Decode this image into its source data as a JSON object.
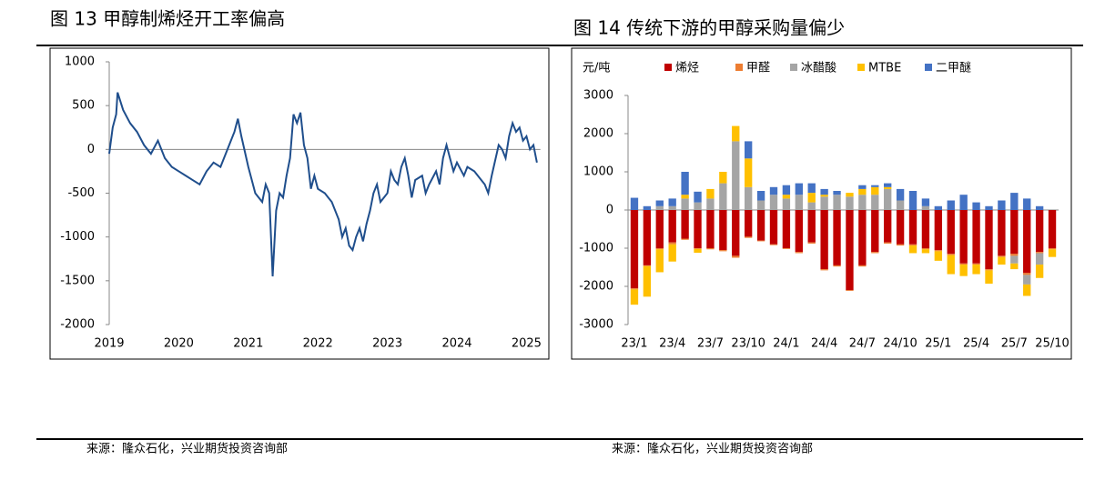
{
  "chart_data": [
    {
      "type": "line",
      "title": "图 13 甲醇制烯烃开工率偏高",
      "x": [
        2019.0,
        2019.05,
        2019.1,
        2019.12,
        2019.2,
        2019.3,
        2019.4,
        2019.5,
        2019.6,
        2019.7,
        2019.8,
        2019.9,
        2020.0,
        2020.1,
        2020.2,
        2020.3,
        2020.4,
        2020.5,
        2020.6,
        2020.7,
        2020.8,
        2020.85,
        2020.9,
        2021.0,
        2021.05,
        2021.1,
        2021.15,
        2021.2,
        2021.25,
        2021.3,
        2021.35,
        2021.4,
        2021.45,
        2021.5,
        2021.55,
        2021.6,
        2021.65,
        2021.7,
        2021.75,
        2021.8,
        2021.85,
        2021.9,
        2021.95,
        2022.0,
        2022.1,
        2022.15,
        2022.2,
        2022.3,
        2022.35,
        2022.4,
        2022.45,
        2022.5,
        2022.55,
        2022.6,
        2022.65,
        2022.7,
        2022.75,
        2022.8,
        2022.85,
        2022.9,
        2023.0,
        2023.05,
        2023.1,
        2023.15,
        2023.2,
        2023.25,
        2023.3,
        2023.35,
        2023.4,
        2023.5,
        2023.55,
        2023.6,
        2023.7,
        2023.75,
        2023.8,
        2023.85,
        2023.9,
        2023.95,
        2024.0,
        2024.1,
        2024.15,
        2024.25,
        2024.3,
        2024.4,
        2024.45,
        2024.5,
        2024.6,
        2024.65,
        2024.7,
        2024.75,
        2024.8,
        2024.85,
        2024.9,
        2024.95,
        2025.0,
        2025.05,
        2025.1,
        2025.15
      ],
      "series": [
        {
          "name": "甲醇制烯烃开工率偏差",
          "color": "#1f4e8c",
          "values": [
            -50,
            250,
            400,
            650,
            450,
            300,
            200,
            50,
            -50,
            100,
            -100,
            -200,
            -250,
            -300,
            -350,
            -400,
            -250,
            -150,
            -200,
            0,
            200,
            350,
            150,
            -200,
            -350,
            -500,
            -550,
            -600,
            -400,
            -500,
            -1450,
            -700,
            -500,
            -550,
            -300,
            -100,
            400,
            300,
            420,
            50,
            -100,
            -450,
            -300,
            -450,
            -500,
            -550,
            -600,
            -800,
            -1000,
            -900,
            -1100,
            -1150,
            -1000,
            -900,
            -1050,
            -850,
            -700,
            -500,
            -400,
            -600,
            -500,
            -250,
            -350,
            -400,
            -200,
            -100,
            -300,
            -550,
            -350,
            -300,
            -500,
            -400,
            -250,
            -400,
            -100,
            50,
            -100,
            -250,
            -150,
            -300,
            -200,
            -250,
            -300,
            -400,
            -500,
            -300,
            50,
            0,
            -100,
            150,
            300,
            200,
            250,
            100,
            150,
            0,
            50,
            -150
          ]
        }
      ],
      "xlim": [
        2019,
        2025.2
      ],
      "xticks": [
        2019,
        2020,
        2021,
        2022,
        2023,
        2024,
        2025
      ],
      "ylim": [
        -2000,
        1000
      ],
      "yticks": [
        -2000,
        -1500,
        -1000,
        -500,
        0,
        500,
        1000
      ]
    },
    {
      "type": "bar",
      "title": "图 14 传统下游的甲醇采购量偏少",
      "y_label": "元/吨",
      "stacked": true,
      "categories": [
        "23/1",
        null,
        null,
        "23/4",
        null,
        null,
        "23/7",
        null,
        null,
        "23/10",
        null,
        null,
        "24/1",
        null,
        null,
        "24/4",
        null,
        null,
        "24/7",
        null,
        null,
        "24/10",
        null,
        null,
        "25/1",
        null,
        null,
        "25/4",
        null,
        null,
        "25/7",
        null,
        null,
        "25/10"
      ],
      "series": [
        {
          "name": "烯烃",
          "color": "#c00000",
          "values": [
            -2050,
            -1450,
            -1000,
            -850,
            -750,
            -1000,
            -1000,
            -1050,
            -1200,
            -700,
            -800,
            -900,
            -1000,
            -1100,
            -850,
            -1550,
            -1450,
            -2100,
            -1450,
            -1100,
            -850,
            -900,
            -900,
            -1000,
            -1050,
            -1150,
            -1400,
            -1400,
            -1550,
            -1200,
            -1150,
            -1650,
            -1100,
            -1000
          ]
        },
        {
          "name": "甲醛",
          "color": "#ed7d31",
          "values": [
            -30,
            -20,
            -30,
            -50,
            -30,
            -20,
            -30,
            -30,
            -50,
            -30,
            -20,
            -20,
            -20,
            -30,
            -30,
            -30,
            -30,
            -20,
            -30,
            -30,
            -30,
            -30,
            -30,
            -30,
            -30,
            -30,
            -30,
            -30,
            -30,
            -30,
            -50,
            -50,
            -30,
            -30
          ]
        },
        {
          "name": "冰醋酸",
          "color": "#a5a5a5",
          "values": [
            0,
            0,
            100,
            100,
            300,
            200,
            300,
            700,
            1800,
            600,
            250,
            400,
            300,
            400,
            200,
            350,
            400,
            350,
            400,
            400,
            550,
            250,
            0,
            100,
            0,
            0,
            0,
            0,
            0,
            0,
            -200,
            -250,
            -300,
            0
          ]
        },
        {
          "name": "MTBE",
          "color": "#ffc000",
          "values": [
            -400,
            -800,
            -600,
            -450,
            100,
            -100,
            250,
            300,
            400,
            750,
            0,
            0,
            100,
            0,
            250,
            50,
            0,
            100,
            150,
            200,
            50,
            0,
            -200,
            -100,
            -250,
            -500,
            -300,
            -250,
            -350,
            -200,
            -150,
            -300,
            -350,
            -200
          ]
        },
        {
          "name": "二甲醚",
          "color": "#4472c4",
          "values": [
            320,
            100,
            150,
            200,
            600,
            280,
            0,
            0,
            0,
            450,
            250,
            200,
            250,
            300,
            250,
            150,
            100,
            0,
            100,
            50,
            100,
            300,
            500,
            200,
            100,
            250,
            400,
            200,
            100,
            250,
            450,
            300,
            100,
            0
          ]
        }
      ],
      "ylim": [
        -3000,
        3000
      ],
      "yticks": [
        -3000,
        -2000,
        -1000,
        0,
        1000,
        2000,
        3000
      ]
    }
  ],
  "sources": [
    "来源：隆众石化，兴业期货投资咨询部",
    "来源：隆众石化，兴业期货投资咨询部"
  ]
}
